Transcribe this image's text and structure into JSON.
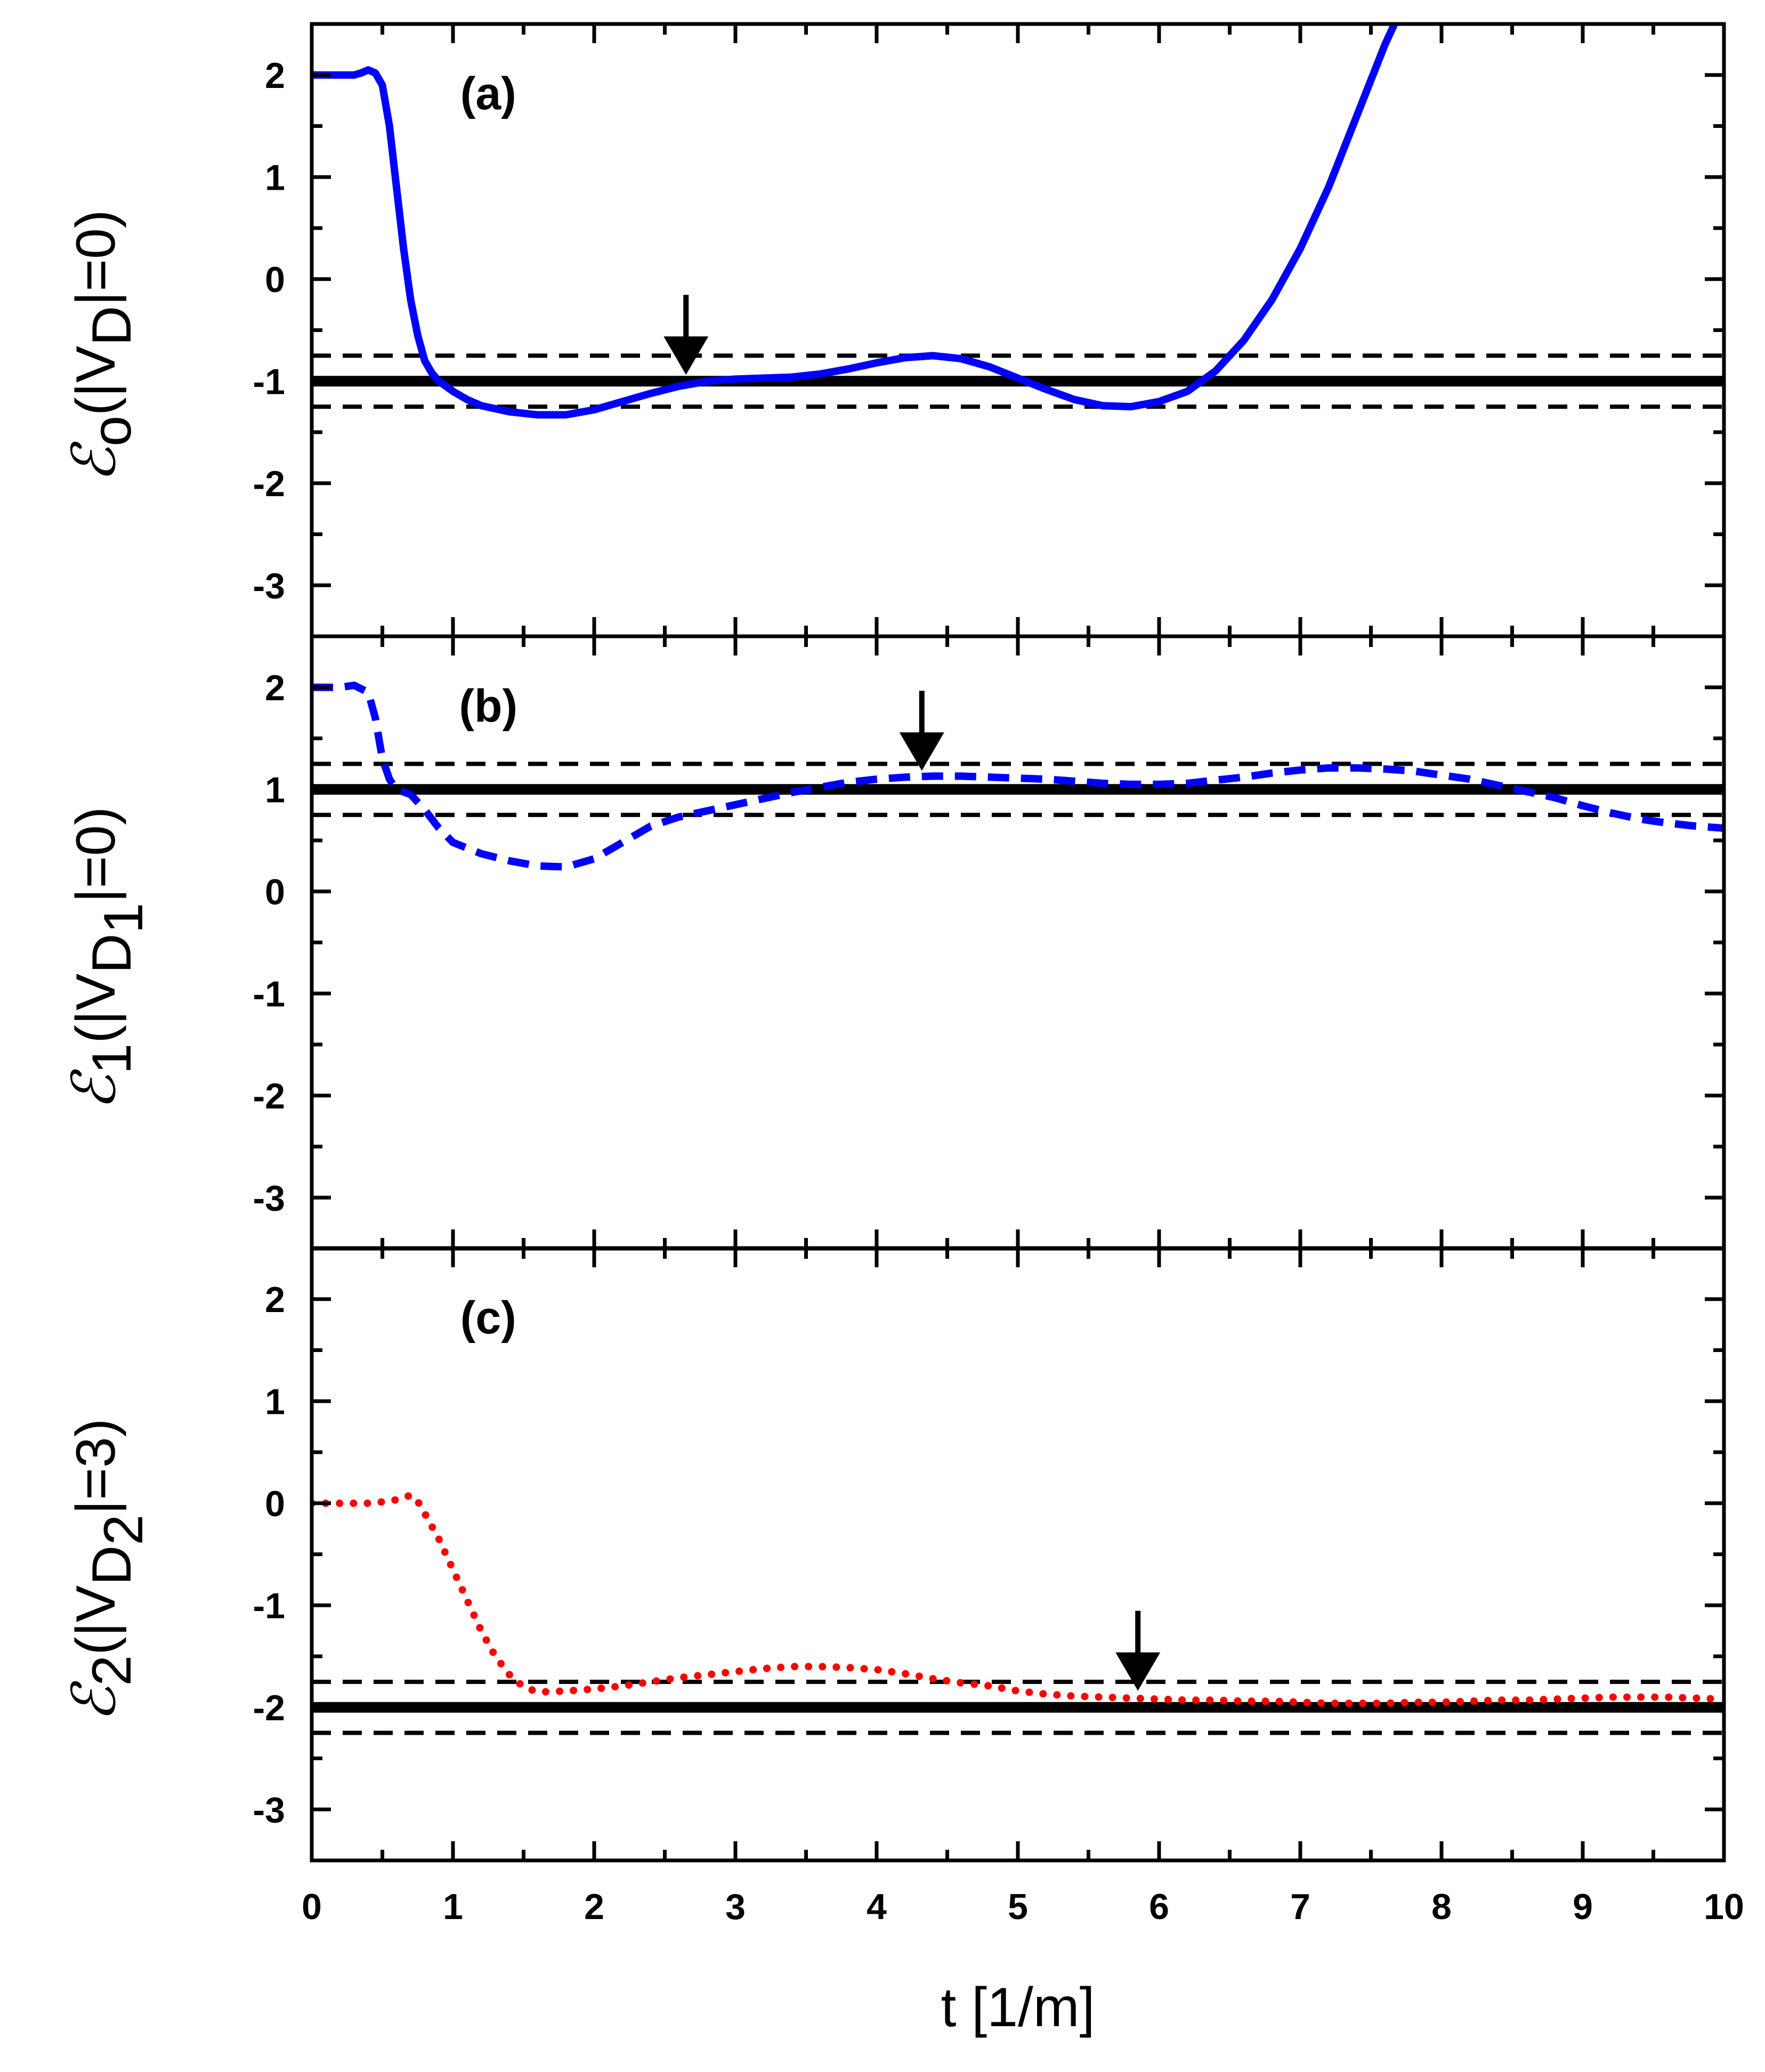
{
  "chart_data": [
    {
      "type": "line",
      "panel": "(a)",
      "ylabel": {
        "symbol": "ℰ",
        "sub": "o",
        "open": "(|V",
        "sub2": "D",
        "sub2sub": "",
        "close": "|=0)"
      },
      "xlim": [
        0,
        10
      ],
      "ylim": [
        -3.5,
        2.5
      ],
      "yticks": [
        2,
        1,
        0,
        -1,
        -2,
        -3
      ],
      "reference": {
        "solid": -1,
        "dashed": [
          -0.75,
          -1.25
        ]
      },
      "arrow_at": {
        "t": 2.65,
        "value": -1.0
      },
      "series": [
        {
          "name": "E0",
          "style": "solid",
          "color": "#0000ff",
          "x": [
            0,
            0.1,
            0.2,
            0.3,
            0.35,
            0.4,
            0.45,
            0.5,
            0.55,
            0.6,
            0.65,
            0.7,
            0.75,
            0.8,
            0.85,
            0.9,
            0.95,
            1.0,
            1.1,
            1.2,
            1.4,
            1.6,
            1.8,
            2.0,
            2.2,
            2.4,
            2.6,
            2.8,
            3.0,
            3.2,
            3.4,
            3.6,
            3.8,
            4.0,
            4.2,
            4.4,
            4.6,
            4.8,
            5.0,
            5.2,
            5.4,
            5.6,
            5.8,
            6.0,
            6.2,
            6.4,
            6.6,
            6.8,
            7.0,
            7.2,
            7.4,
            7.6,
            7.7
          ],
          "y": [
            2.0,
            2.0,
            2.0,
            2.0,
            2.02,
            2.05,
            2.02,
            1.9,
            1.5,
            0.9,
            0.3,
            -0.2,
            -0.55,
            -0.8,
            -0.92,
            -1.0,
            -1.05,
            -1.1,
            -1.18,
            -1.24,
            -1.3,
            -1.33,
            -1.33,
            -1.28,
            -1.2,
            -1.12,
            -1.05,
            -1.0,
            -0.98,
            -0.97,
            -0.96,
            -0.93,
            -0.88,
            -0.82,
            -0.77,
            -0.75,
            -0.78,
            -0.86,
            -0.97,
            -1.08,
            -1.18,
            -1.24,
            -1.25,
            -1.2,
            -1.1,
            -0.9,
            -0.6,
            -0.2,
            0.3,
            0.9,
            1.6,
            2.3,
            2.6
          ]
        }
      ]
    },
    {
      "type": "line",
      "panel": "(b)",
      "ylabel": {
        "symbol": "ℰ",
        "sub": "1",
        "open": "(|V",
        "sub2": "D",
        "sub2sub": "1",
        "close": "|=0)"
      },
      "xlim": [
        0,
        10
      ],
      "ylim": [
        -3.5,
        2.5
      ],
      "yticks": [
        2,
        1,
        0,
        -1,
        -2,
        -3
      ],
      "reference": {
        "solid": 1,
        "dashed": [
          1.25,
          0.75
        ]
      },
      "arrow_at": {
        "t": 4.32,
        "value": 1.12
      },
      "series": [
        {
          "name": "E1",
          "style": "dashed",
          "color": "#0000ff",
          "x": [
            0,
            0.1,
            0.2,
            0.3,
            0.4,
            0.45,
            0.5,
            0.55,
            0.6,
            0.7,
            0.8,
            0.9,
            1.0,
            1.2,
            1.4,
            1.6,
            1.8,
            2.0,
            2.2,
            2.4,
            2.6,
            2.8,
            3.0,
            3.2,
            3.4,
            3.6,
            3.8,
            4.0,
            4.2,
            4.4,
            4.6,
            4.8,
            5.0,
            5.2,
            5.4,
            5.6,
            5.8,
            6.0,
            6.2,
            6.4,
            6.6,
            6.8,
            7.0,
            7.2,
            7.4,
            7.6,
            7.8,
            8.0,
            8.2,
            8.4,
            8.6,
            8.8,
            9.0,
            9.2,
            9.4,
            9.6,
            9.8,
            10.0
          ],
          "y": [
            2.0,
            2.0,
            2.0,
            2.02,
            1.95,
            1.7,
            1.3,
            1.1,
            1.0,
            0.95,
            0.8,
            0.62,
            0.48,
            0.37,
            0.3,
            0.25,
            0.24,
            0.32,
            0.48,
            0.64,
            0.73,
            0.79,
            0.85,
            0.91,
            0.97,
            1.02,
            1.07,
            1.1,
            1.12,
            1.13,
            1.13,
            1.12,
            1.11,
            1.1,
            1.08,
            1.06,
            1.05,
            1.05,
            1.06,
            1.09,
            1.12,
            1.16,
            1.19,
            1.21,
            1.21,
            1.2,
            1.18,
            1.14,
            1.1,
            1.04,
            0.98,
            0.92,
            0.84,
            0.77,
            0.71,
            0.67,
            0.64,
            0.62
          ]
        }
      ]
    },
    {
      "type": "line",
      "panel": "(c)",
      "ylabel": {
        "symbol": "ℰ",
        "sub": "2",
        "open": "(|V",
        "sub2": "D",
        "sub2sub": "2",
        "close": "|=3)"
      },
      "xlim": [
        0,
        10
      ],
      "ylim": [
        -3.5,
        2.5
      ],
      "yticks": [
        2,
        1,
        0,
        -1,
        -2,
        -3
      ],
      "reference": {
        "solid": -2,
        "dashed": [
          -1.75,
          -2.25
        ]
      },
      "arrow_at": {
        "t": 5.85,
        "value": -1.9
      },
      "series": [
        {
          "name": "E2",
          "style": "dotted",
          "color": "#ff0000",
          "x": [
            0,
            0.2,
            0.4,
            0.55,
            0.65,
            0.7,
            0.75,
            0.8,
            0.9,
            1.0,
            1.1,
            1.2,
            1.3,
            1.4,
            1.5,
            1.6,
            1.8,
            2.0,
            2.2,
            2.4,
            2.6,
            2.8,
            3.0,
            3.2,
            3.4,
            3.6,
            3.8,
            4.0,
            4.2,
            4.4,
            4.6,
            4.8,
            5.0,
            5.2,
            5.4,
            5.6,
            5.8,
            6.0,
            6.2,
            6.4,
            6.6,
            6.8,
            7.0,
            7.2,
            7.4,
            7.6,
            7.8,
            8.0,
            8.2,
            8.4,
            8.6,
            8.8,
            9.0,
            9.2,
            9.4,
            9.6,
            9.8,
            10.0
          ],
          "y": [
            0.0,
            0.0,
            0.0,
            0.02,
            0.05,
            0.08,
            0.02,
            -0.1,
            -0.35,
            -0.65,
            -0.95,
            -1.25,
            -1.5,
            -1.68,
            -1.8,
            -1.85,
            -1.84,
            -1.82,
            -1.79,
            -1.75,
            -1.71,
            -1.68,
            -1.65,
            -1.62,
            -1.6,
            -1.6,
            -1.61,
            -1.63,
            -1.67,
            -1.72,
            -1.76,
            -1.79,
            -1.84,
            -1.87,
            -1.89,
            -1.9,
            -1.91,
            -1.92,
            -1.93,
            -1.93,
            -1.94,
            -1.94,
            -1.95,
            -1.96,
            -1.96,
            -1.96,
            -1.95,
            -1.95,
            -1.94,
            -1.93,
            -1.93,
            -1.92,
            -1.91,
            -1.9,
            -1.9,
            -1.9,
            -1.91,
            -1.92
          ]
        }
      ]
    }
  ],
  "xaxis": {
    "label": "t [1/m]",
    "ticks": [
      0,
      1,
      2,
      3,
      4,
      5,
      6,
      7,
      8,
      9,
      10
    ]
  }
}
